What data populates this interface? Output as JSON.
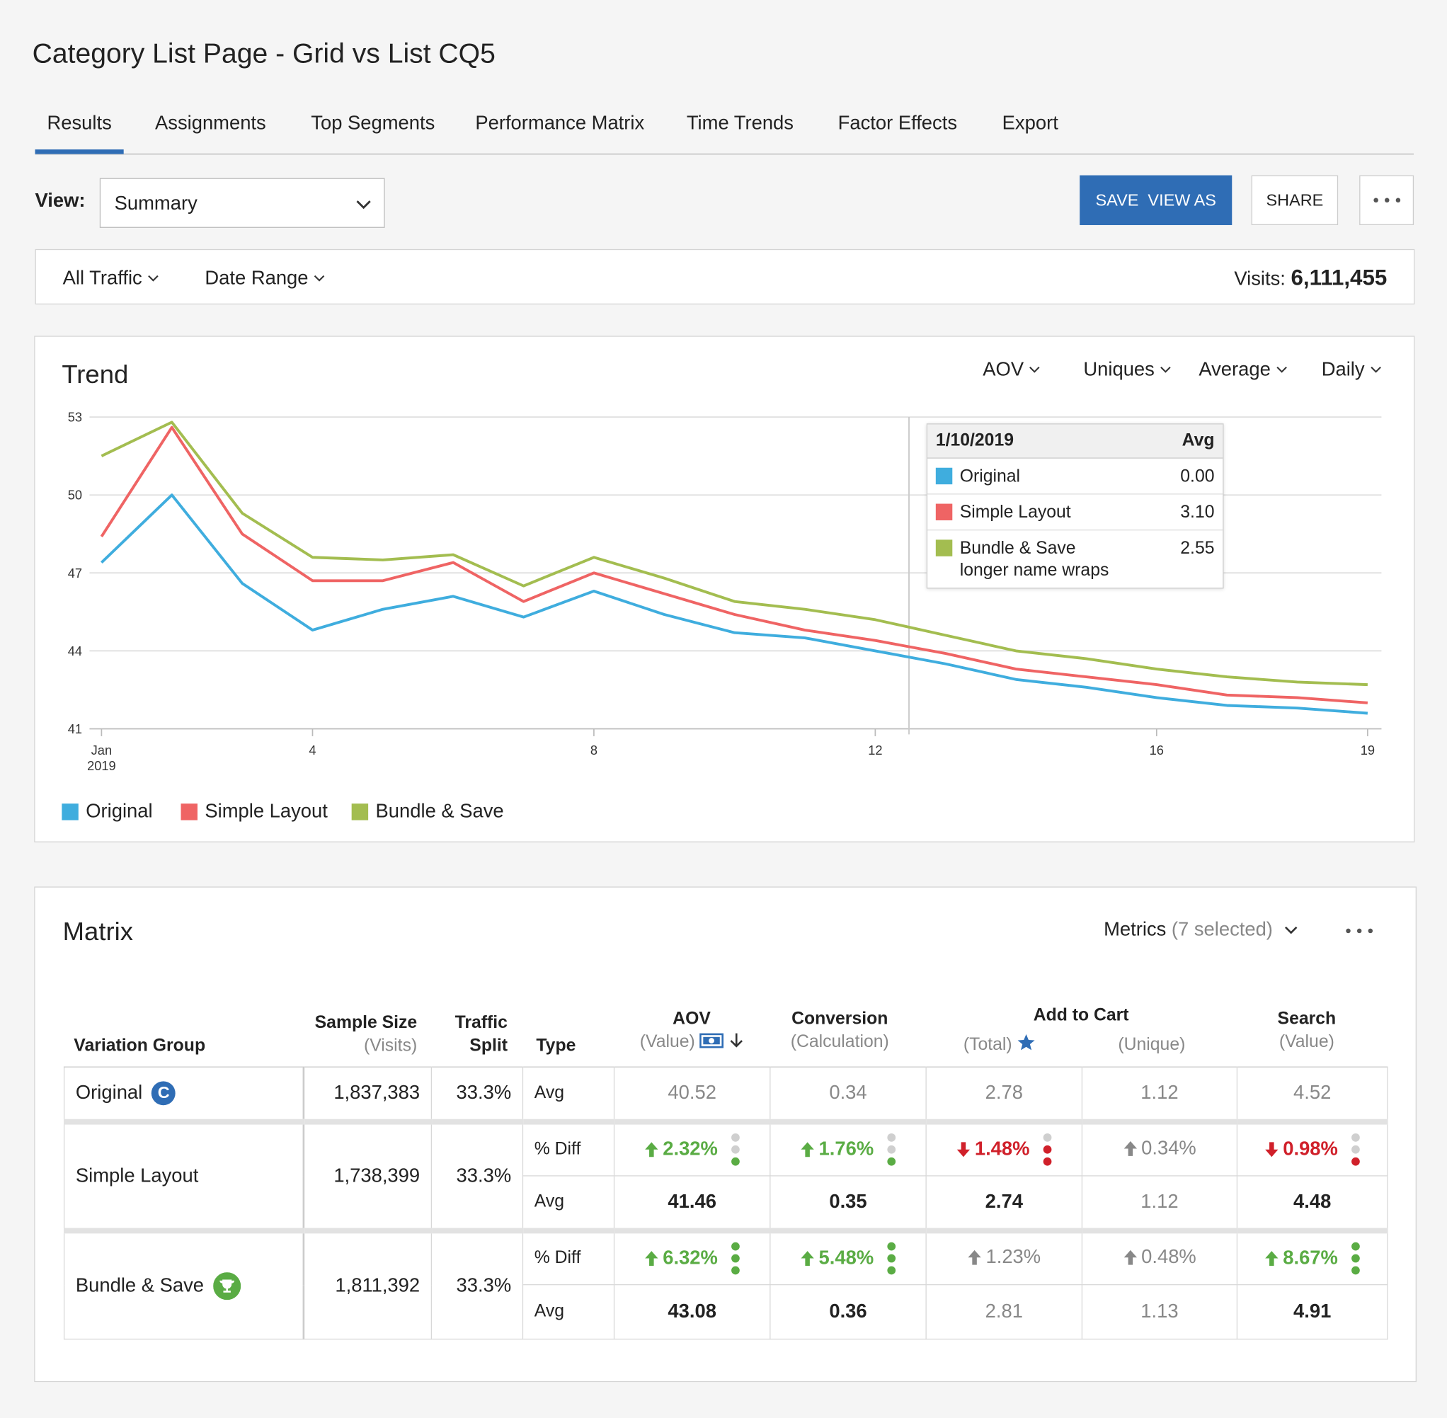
{
  "header": {
    "title": "Category List Page - Grid vs List CQ5"
  },
  "tabs": [
    "Results",
    "Assignments",
    "Top Segments",
    "Performance Matrix",
    "Time Trends",
    "Factor Effects",
    "Export"
  ],
  "active_tab": 0,
  "toolbar": {
    "view_label": "View:",
    "view_value": "Summary",
    "save": "SAVE  VIEW AS",
    "share": "SHARE"
  },
  "filters": {
    "traffic": "All Traffic",
    "date": "Date Range",
    "visits_label": "Visits:",
    "visits": "6,111,455"
  },
  "trend": {
    "title": "Trend",
    "controls": [
      "AOV",
      "Uniques",
      "Average",
      "Daily"
    ],
    "tooltip": {
      "date": "1/10/2019",
      "column": "Avg",
      "rows": [
        {
          "name": "Original",
          "value": "0.00",
          "color": "#3fadde"
        },
        {
          "name": "Simple Layout",
          "value": "3.10",
          "color": "#ef6464"
        },
        {
          "name": "Bundle & Save longer name wraps",
          "value": "2.55",
          "color": "#a3bd50"
        }
      ]
    }
  },
  "chart_data": {
    "type": "line",
    "x": [
      1,
      2,
      3,
      4,
      5,
      6,
      7,
      8,
      9,
      10,
      11,
      12,
      13,
      14,
      15,
      16,
      17,
      18,
      19
    ],
    "series": [
      {
        "name": "Original",
        "color": "#3fadde",
        "values": [
          47.4,
          50.0,
          46.6,
          44.8,
          45.6,
          46.1,
          45.3,
          46.3,
          45.4,
          44.7,
          44.5,
          44.0,
          43.5,
          42.9,
          42.6,
          42.2,
          41.9,
          41.8,
          41.6
        ]
      },
      {
        "name": "Simple Layout",
        "color": "#ef6464",
        "values": [
          48.4,
          52.6,
          48.5,
          46.7,
          46.7,
          47.4,
          45.9,
          47.0,
          46.2,
          45.4,
          44.8,
          44.4,
          43.9,
          43.3,
          43.0,
          42.7,
          42.3,
          42.2,
          42.0
        ]
      },
      {
        "name": "Bundle & Save",
        "color": "#a3bd50",
        "values": [
          51.5,
          52.8,
          49.3,
          47.6,
          47.5,
          47.7,
          46.5,
          47.6,
          46.8,
          45.9,
          45.6,
          45.2,
          44.6,
          44.0,
          43.7,
          43.3,
          43.0,
          42.8,
          42.7
        ]
      }
    ],
    "xlim": [
      1,
      19
    ],
    "xticks": [
      {
        "value": 1,
        "label": "Jan 2019"
      },
      4,
      8,
      12,
      16,
      19
    ],
    "ylim": [
      41,
      53
    ],
    "yticks": [
      41,
      44,
      47,
      50,
      53
    ],
    "grid": true,
    "legend": "bottom"
  },
  "matrix": {
    "title": "Matrix",
    "metrics_label": "Metrics",
    "metrics_count": "(7 selected)",
    "headers": {
      "group": "Variation Group",
      "size": "Sample Size",
      "size_sub": "(Visits)",
      "split": "Traffic Split",
      "type": "Type",
      "aov": "AOV",
      "aov_sub": "(Value)",
      "conversion": "Conversion",
      "conversion_sub": "(Calculation)",
      "add_to_cart": "Add to Cart",
      "atc_total_sub": "(Total)",
      "atc_unique_sub": "(Unique)",
      "search": "Search",
      "search_sub": "(Value)"
    },
    "groups": [
      {
        "name": "Original",
        "badge": "C",
        "size": "1,837,383",
        "split": "33.3%",
        "rows": [
          {
            "type": "Avg",
            "cells": [
              {
                "text": "40.52"
              },
              {
                "text": "0.34"
              },
              {
                "text": "2.78"
              },
              {
                "text": "1.12"
              },
              {
                "text": "4.52"
              }
            ]
          }
        ]
      },
      {
        "name": "Simple Layout",
        "size": "1,738,399",
        "split": "33.3%",
        "rows": [
          {
            "type": "% Diff",
            "cells": [
              {
                "text": "2.32%",
                "trend": "up",
                "tone": "green",
                "dots": [
                  "gray",
                  "gray",
                  "green"
                ]
              },
              {
                "text": "1.76%",
                "trend": "up",
                "tone": "green",
                "dots": [
                  "gray",
                  "gray",
                  "green"
                ]
              },
              {
                "text": "1.48%",
                "trend": "down",
                "tone": "red",
                "dots": [
                  "gray",
                  "red",
                  "red"
                ]
              },
              {
                "text": "0.34%",
                "trend": "up",
                "tone": "gray"
              },
              {
                "text": "0.98%",
                "trend": "down",
                "tone": "red",
                "dots": [
                  "gray",
                  "gray",
                  "red"
                ]
              }
            ]
          },
          {
            "type": "Avg",
            "cells": [
              {
                "text": "41.46",
                "bold": true
              },
              {
                "text": "0.35",
                "bold": true
              },
              {
                "text": "2.74",
                "bold": true
              },
              {
                "text": "1.12"
              },
              {
                "text": "4.48",
                "bold": true
              }
            ]
          }
        ]
      },
      {
        "name": "Bundle & Save",
        "icon": "trophy",
        "size": "1,811,392",
        "split": "33.3%",
        "rows": [
          {
            "type": "% Diff",
            "cells": [
              {
                "text": "6.32%",
                "trend": "up",
                "tone": "green",
                "dots": [
                  "green",
                  "green",
                  "green"
                ]
              },
              {
                "text": "5.48%",
                "trend": "up",
                "tone": "green",
                "dots": [
                  "green",
                  "green",
                  "green"
                ]
              },
              {
                "text": "1.23%",
                "trend": "up",
                "tone": "gray"
              },
              {
                "text": "0.48%",
                "trend": "up",
                "tone": "gray"
              },
              {
                "text": "8.67%",
                "trend": "up",
                "tone": "green",
                "dots": [
                  "green",
                  "green",
                  "green"
                ]
              }
            ]
          },
          {
            "type": "Avg",
            "cells": [
              {
                "text": "43.08",
                "bold": true
              },
              {
                "text": "0.36",
                "bold": true
              },
              {
                "text": "2.81"
              },
              {
                "text": "1.13"
              },
              {
                "text": "4.91",
                "bold": true
              }
            ]
          }
        ]
      }
    ]
  }
}
